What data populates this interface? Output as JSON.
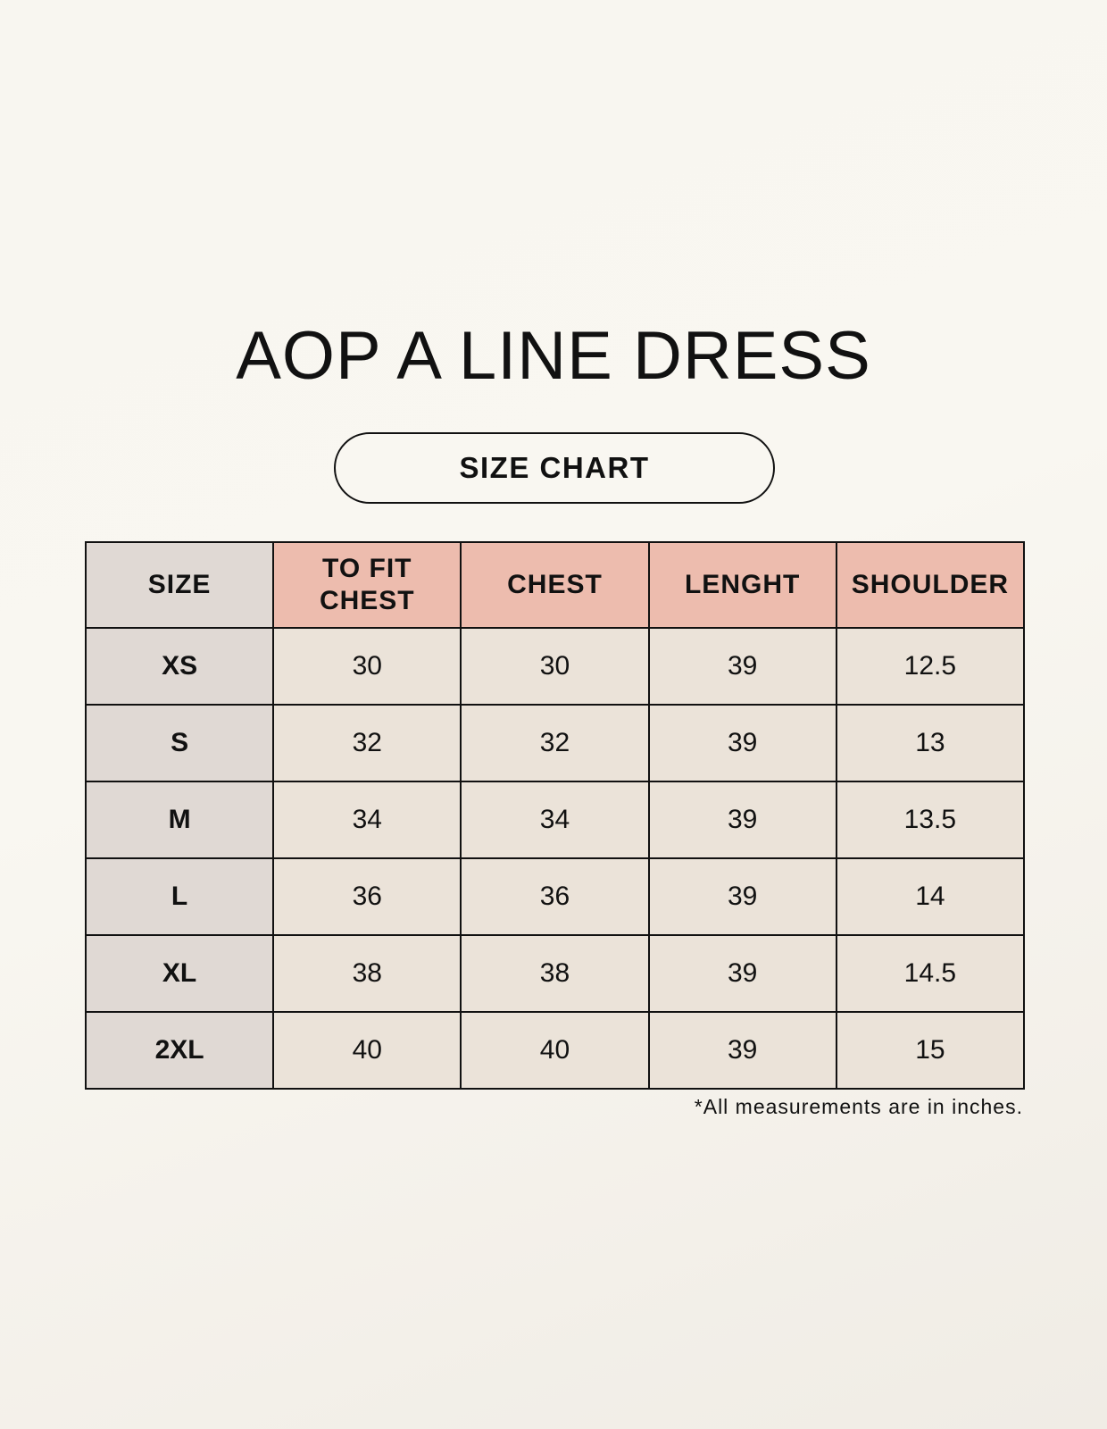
{
  "title": "AOP A LINE DRESS",
  "subtitle": "SIZE CHART",
  "table": {
    "headers": [
      "SIZE",
      "TO FIT CHEST",
      "CHEST",
      "LENGHT",
      "SHOULDER"
    ],
    "rows": [
      [
        "XS",
        "30",
        "30",
        "39",
        "12.5"
      ],
      [
        "S",
        "32",
        "32",
        "39",
        "13"
      ],
      [
        "M",
        "34",
        "34",
        "39",
        "13.5"
      ],
      [
        "L",
        "36",
        "36",
        "39",
        "14"
      ],
      [
        "XL",
        "38",
        "38",
        "39",
        "14.5"
      ],
      [
        "2XL",
        "40",
        "40",
        "39",
        "15"
      ]
    ]
  },
  "note": "*All measurements are in inches.",
  "colors": {
    "header": "#edbcae",
    "size_column": "#e0d9d4",
    "cells": "#ebe3d9"
  }
}
